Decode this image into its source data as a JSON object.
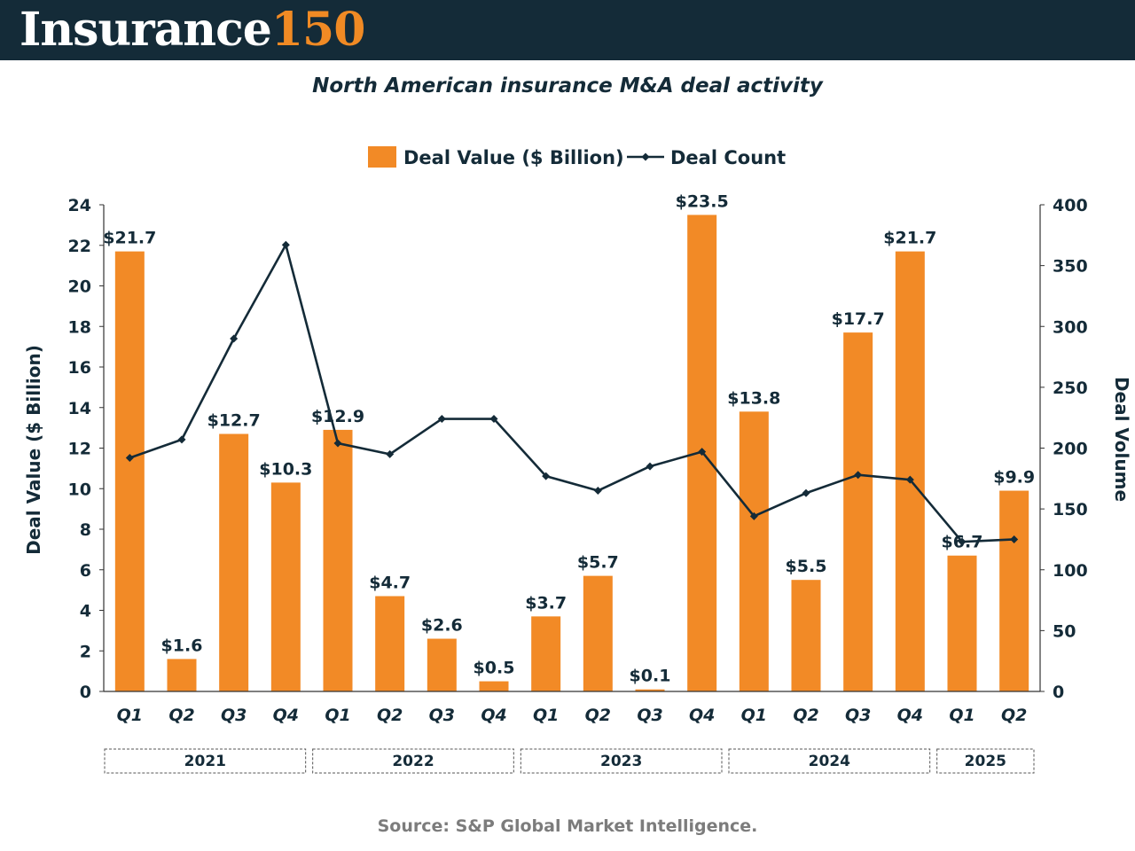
{
  "header": {
    "brand_word": "Insurance",
    "brand_number": "150",
    "colors": {
      "background": "#142b38",
      "word": "#ffffff",
      "number": "#f08a24"
    }
  },
  "source": "Source: S&P Global Market Intelligence.",
  "chart_data": {
    "type": "bar",
    "title": "North American insurance M&A deal activity",
    "categories": [
      "Q1",
      "Q2",
      "Q3",
      "Q4",
      "Q1",
      "Q2",
      "Q3",
      "Q4",
      "Q1",
      "Q2",
      "Q3",
      "Q4",
      "Q1",
      "Q2",
      "Q3",
      "Q4",
      "Q1",
      "Q2"
    ],
    "groups": [
      {
        "label": "2021",
        "count": 4
      },
      {
        "label": "2022",
        "count": 4
      },
      {
        "label": "2023",
        "count": 4
      },
      {
        "label": "2024",
        "count": 4
      },
      {
        "label": "2025",
        "count": 2
      }
    ],
    "series": [
      {
        "name": "Deal Value ($ Billion)",
        "type": "bar",
        "axis": "left",
        "color": "#f28a26",
        "values": [
          21.7,
          1.6,
          12.7,
          10.3,
          12.9,
          4.7,
          2.6,
          0.5,
          3.7,
          5.7,
          0.1,
          23.5,
          13.8,
          5.5,
          17.7,
          21.7,
          6.7,
          9.9
        ],
        "labels": [
          "$21.7",
          "$1.6",
          "$12.7",
          "$10.3",
          "$12.9",
          "$4.7",
          "$2.6",
          "$0.5",
          "$3.7",
          "$5.7",
          "$0.1",
          "$23.5",
          "$13.8",
          "$5.5",
          "$17.7",
          "$21.7",
          "$6.7",
          "$9.9"
        ]
      },
      {
        "name": "Deal Count",
        "type": "line",
        "axis": "right",
        "color": "#142b38",
        "values": [
          192,
          207,
          290,
          367,
          204,
          195,
          224,
          224,
          177,
          165,
          185,
          197,
          144,
          163,
          178,
          174,
          123,
          125
        ]
      }
    ],
    "ylabel": "Deal Value ($ Billion)",
    "ylim": [
      0,
      24
    ],
    "yticks": [
      0,
      2,
      4,
      6,
      8,
      10,
      12,
      14,
      16,
      18,
      20,
      22,
      24
    ],
    "y2label": "Deal Volume",
    "y2lim": [
      0,
      400
    ],
    "y2ticks": [
      0,
      50,
      100,
      150,
      200,
      250,
      300,
      350,
      400
    ],
    "legend_position": "top-center",
    "grid": false
  }
}
